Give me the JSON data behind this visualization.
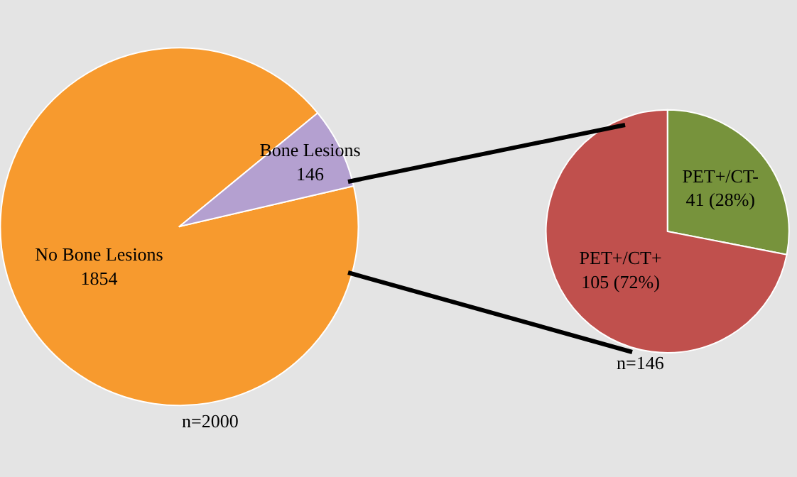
{
  "chart_data": [
    {
      "type": "pie",
      "categories": [
        "No Bone Lesions",
        "Bone Lesions"
      ],
      "values": [
        1854,
        146
      ],
      "colors": [
        "#f79a2e",
        "#b4a0d0"
      ],
      "value_labels": [
        "1854",
        "146"
      ],
      "annotations": [
        "n=2000"
      ]
    },
    {
      "type": "pie",
      "categories": [
        "PET+/CT-",
        "PET+/CT+"
      ],
      "values": [
        41,
        105
      ],
      "colors": [
        "#77933c",
        "#c0504d"
      ],
      "value_labels": [
        "41 (28%)",
        "105 (72%)"
      ],
      "annotations": [
        "n=146"
      ]
    }
  ]
}
